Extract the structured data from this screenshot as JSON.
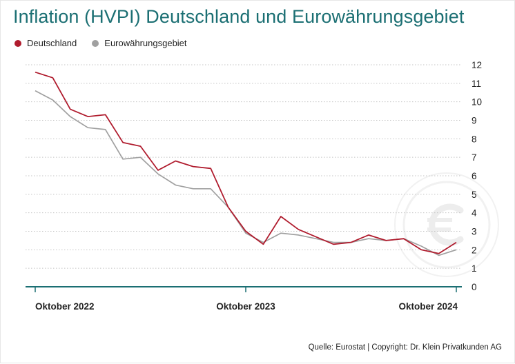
{
  "header": {
    "title": "Inflation (HVPI) Deutschland und Eurowährungsgebiet"
  },
  "legend": [
    {
      "label": "Deutschland",
      "color": "#b01c2e"
    },
    {
      "label": "Eurowährungsgebiet",
      "color": "#a0a0a0"
    }
  ],
  "footer": {
    "source": "Quelle: Eurostat | Copyright: Dr. Klein Privatkunden AG"
  },
  "watermark": {
    "icon": "euro-coin-icon"
  },
  "colors": {
    "accent": "#1b6f73",
    "germany": "#b01c2e",
    "euro_area": "#a0a0a0",
    "grid": "#bfbfbf"
  },
  "chart_data": {
    "type": "line",
    "title": "Inflation (HVPI) Deutschland und Eurowährungsgebiet",
    "xlabel": "",
    "ylabel": "",
    "x_tick_labels": [
      "Oktober 2022",
      "Oktober 2023",
      "Oktober 2024"
    ],
    "x_tick_index": [
      0,
      12,
      24
    ],
    "x": [
      "2022-10",
      "2022-11",
      "2022-12",
      "2023-01",
      "2023-02",
      "2023-03",
      "2023-04",
      "2023-05",
      "2023-06",
      "2023-07",
      "2023-08",
      "2023-09",
      "2023-10",
      "2023-11",
      "2023-12",
      "2024-01",
      "2024-02",
      "2024-03",
      "2024-04",
      "2024-05",
      "2024-06",
      "2024-07",
      "2024-08",
      "2024-09",
      "2024-10"
    ],
    "yticks": [
      0,
      1,
      2,
      3,
      4,
      5,
      6,
      7,
      8,
      9,
      10,
      11,
      12
    ],
    "ylim": [
      0,
      12
    ],
    "grid": "horizontal dotted",
    "legend_position": "top-left",
    "series": [
      {
        "name": "Deutschland",
        "color": "#b01c2e",
        "values": [
          11.6,
          11.3,
          9.6,
          9.2,
          9.3,
          7.8,
          7.6,
          6.3,
          6.8,
          6.5,
          6.4,
          4.3,
          3.0,
          2.3,
          3.8,
          3.1,
          2.7,
          2.3,
          2.4,
          2.8,
          2.5,
          2.6,
          2.0,
          1.8,
          2.4
        ]
      },
      {
        "name": "Eurowährungsgebiet",
        "color": "#a0a0a0",
        "values": [
          10.6,
          10.1,
          9.2,
          8.6,
          8.5,
          6.9,
          7.0,
          6.1,
          5.5,
          5.3,
          5.3,
          4.3,
          2.9,
          2.4,
          2.9,
          2.8,
          2.6,
          2.4,
          2.4,
          2.6,
          2.5,
          2.6,
          2.2,
          1.7,
          2.0
        ]
      }
    ]
  }
}
